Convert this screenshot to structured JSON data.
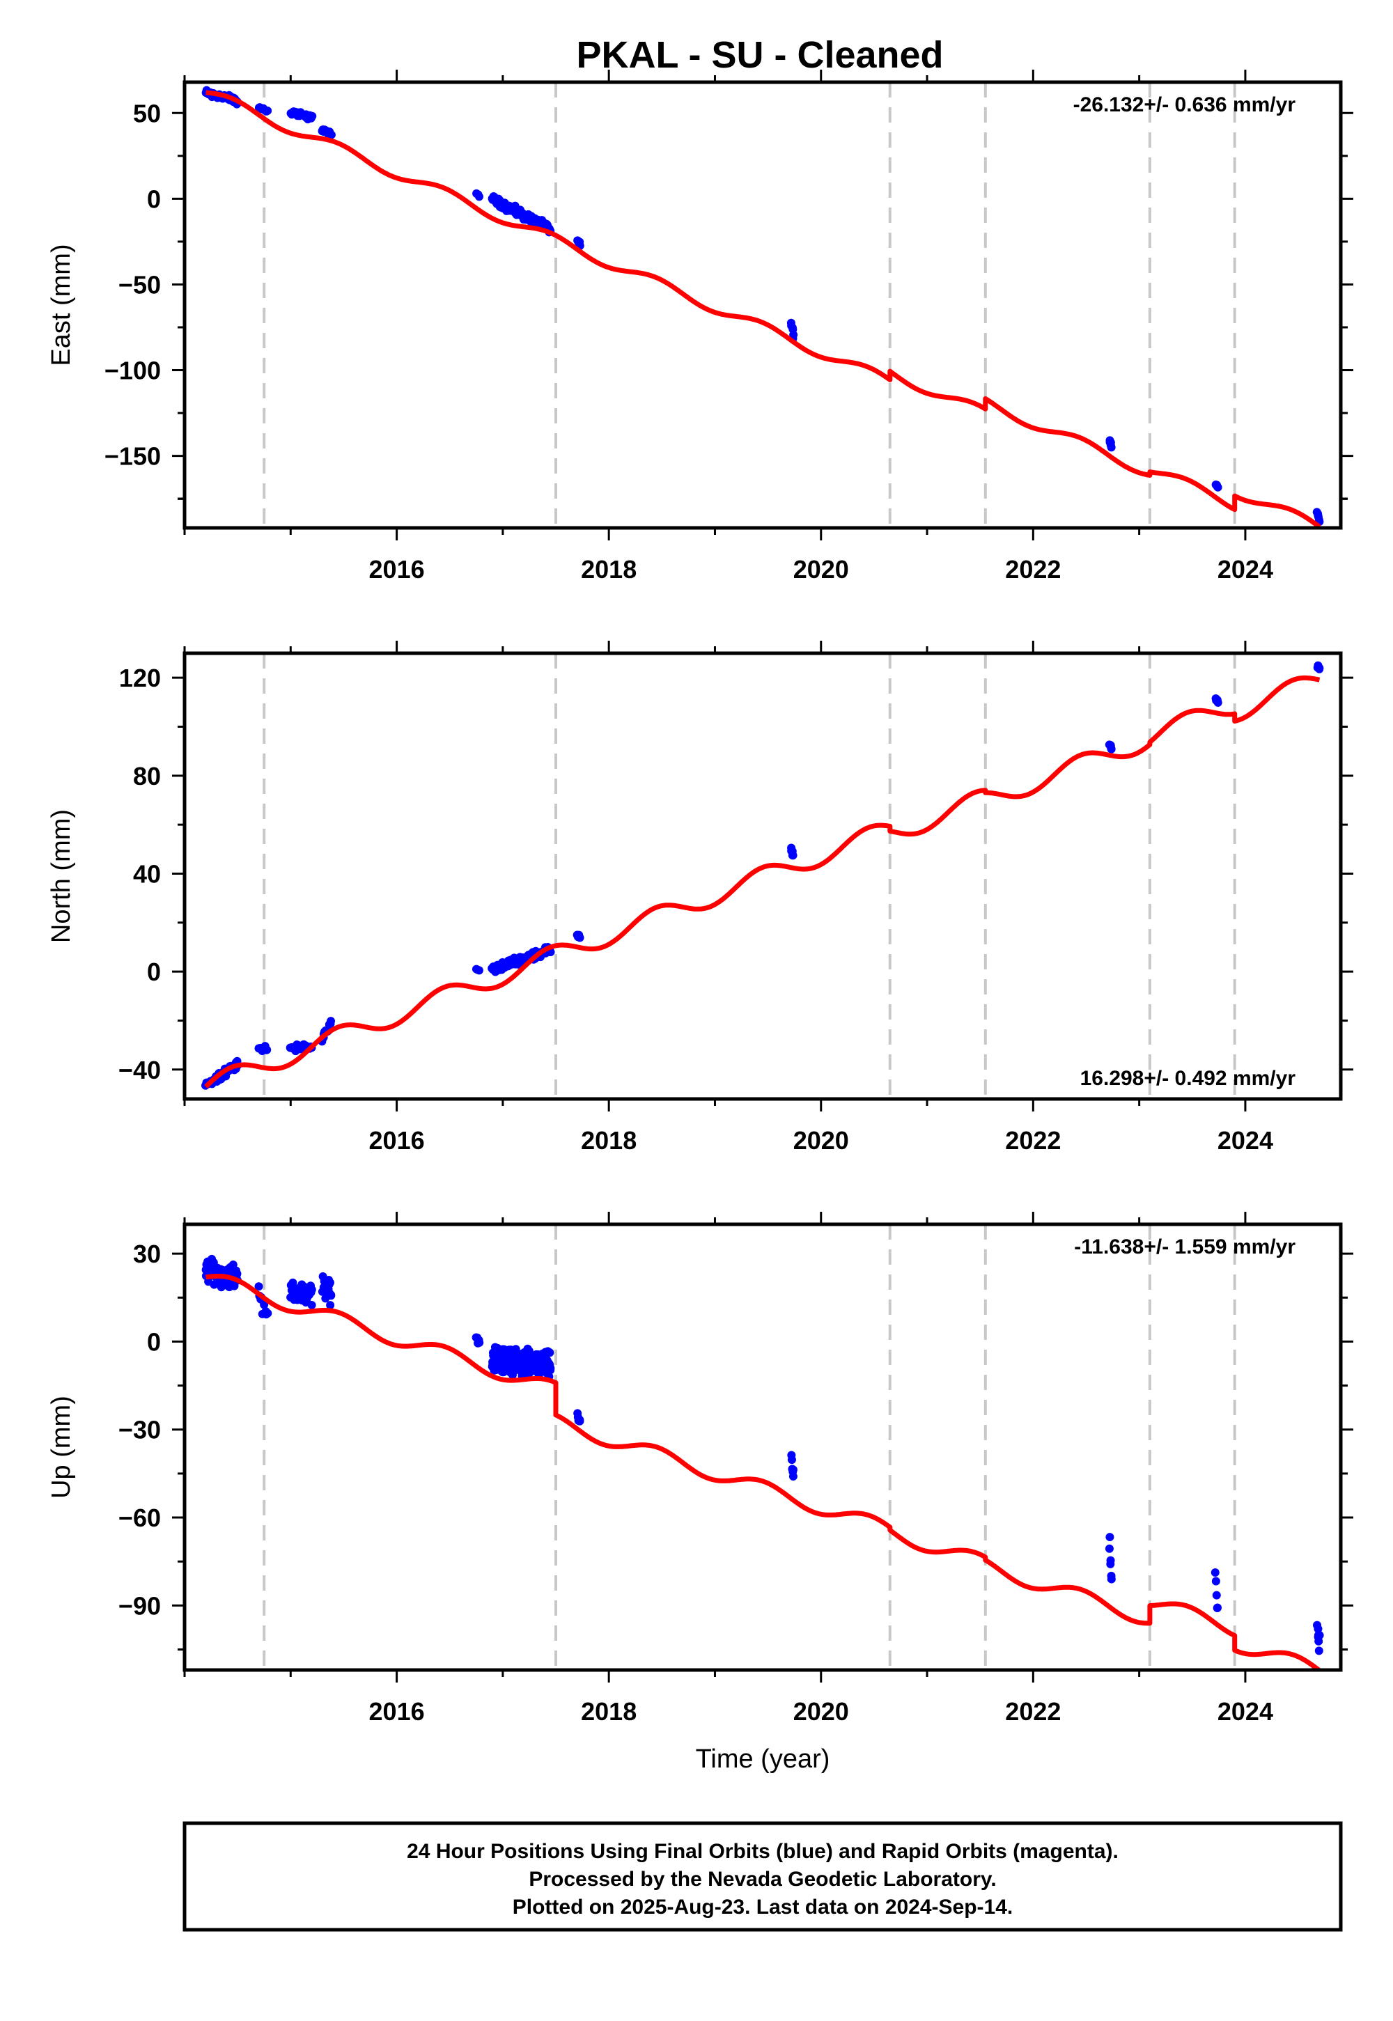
{
  "title": "PKAL  - SU - Cleaned",
  "footer": {
    "lines": [
      "24 Hour Positions Using Final Orbits (blue) and Rapid Orbits (magenta).",
      "Processed by the Nevada Geodetic Laboratory.",
      "Plotted on 2025-Aug-23. Last data on 2024-Sep-14."
    ]
  },
  "colors": {
    "data_points": "#0000ff",
    "model_line": "#ff0000",
    "offset_lines": "#c8c8c8",
    "frame": "#000000"
  },
  "chart_data": [
    {
      "type": "scatter",
      "component": "east",
      "ylabel": "East (mm)",
      "xlabel": "",
      "rate_text": "-26.132+/- 0.636 mm/yr",
      "xlim": [
        2014.0,
        2024.9
      ],
      "ylim": [
        -192,
        68
      ],
      "xticks": [
        2016,
        2018,
        2020,
        2022,
        2024
      ],
      "yticks": [
        -150,
        -100,
        -50,
        0,
        50
      ],
      "offset_epochs": [
        2014.75,
        2017.5,
        2020.65,
        2021.55,
        2023.1,
        2023.9
      ],
      "clusters": [
        {
          "x0": 2014.2,
          "x1": 2014.5,
          "y0": 62,
          "y1": 57,
          "n": 55,
          "spread": 2.5
        },
        {
          "x0": 2014.7,
          "x1": 2014.78,
          "y0": 53,
          "y1": 51,
          "n": 8,
          "spread": 1.5
        },
        {
          "x0": 2015.0,
          "x1": 2015.2,
          "y0": 51,
          "y1": 47,
          "n": 24,
          "spread": 2
        },
        {
          "x0": 2015.3,
          "x1": 2015.38,
          "y0": 41,
          "y1": 37,
          "n": 14,
          "spread": 2
        },
        {
          "x0": 2016.75,
          "x1": 2016.78,
          "y0": 3,
          "y1": 2,
          "n": 3,
          "spread": 1
        },
        {
          "x0": 2016.9,
          "x1": 2017.45,
          "y0": 0,
          "y1": -18,
          "n": 110,
          "spread": 3
        },
        {
          "x0": 2017.7,
          "x1": 2017.73,
          "y0": -24,
          "y1": -27,
          "n": 4,
          "spread": 1.5
        },
        {
          "x0": 2019.72,
          "x1": 2019.74,
          "y0": -73,
          "y1": -80,
          "n": 6,
          "spread": 2
        },
        {
          "x0": 2022.72,
          "x1": 2022.74,
          "y0": -141,
          "y1": -145,
          "n": 5,
          "spread": 1.5
        },
        {
          "x0": 2023.72,
          "x1": 2023.74,
          "y0": -167,
          "y1": -169,
          "n": 4,
          "spread": 1
        },
        {
          "x0": 2024.68,
          "x1": 2024.7,
          "y0": -182,
          "y1": -188,
          "n": 6,
          "spread": 1.5
        }
      ],
      "model": {
        "start_x": 2014.2,
        "start_y": 62,
        "rate": -26.132,
        "amp": 3.0,
        "end_x": 2024.7,
        "jumps": [
          {
            "x": 2020.65,
            "dy": 5
          },
          {
            "x": 2021.55,
            "dy": 6
          },
          {
            "x": 2023.1,
            "dy": 2
          },
          {
            "x": 2023.9,
            "dy": 8
          }
        ]
      }
    },
    {
      "type": "scatter",
      "component": "north",
      "ylabel": "North (mm)",
      "xlabel": "",
      "rate_text": "16.298+/- 0.492 mm/yr",
      "xlim": [
        2014.0,
        2024.9
      ],
      "ylim": [
        -52,
        130
      ],
      "xticks": [
        2016,
        2018,
        2020,
        2022,
        2024
      ],
      "yticks": [
        -40,
        0,
        40,
        80,
        120
      ],
      "offset_epochs": [
        2014.75,
        2017.5,
        2020.65,
        2021.55,
        2023.1,
        2023.9
      ],
      "clusters": [
        {
          "x0": 2014.2,
          "x1": 2014.5,
          "y0": -46,
          "y1": -38,
          "n": 45,
          "spread": 2
        },
        {
          "x0": 2014.7,
          "x1": 2014.78,
          "y0": -32,
          "y1": -31,
          "n": 8,
          "spread": 1.5
        },
        {
          "x0": 2015.0,
          "x1": 2015.2,
          "y0": -31,
          "y1": -31,
          "n": 24,
          "spread": 1.5
        },
        {
          "x0": 2015.3,
          "x1": 2015.38,
          "y0": -27,
          "y1": -21,
          "n": 14,
          "spread": 2
        },
        {
          "x0": 2016.75,
          "x1": 2016.78,
          "y0": 1,
          "y1": 0,
          "n": 3,
          "spread": 1
        },
        {
          "x0": 2016.9,
          "x1": 2017.45,
          "y0": 1,
          "y1": 9,
          "n": 110,
          "spread": 2
        },
        {
          "x0": 2017.7,
          "x1": 2017.73,
          "y0": 15,
          "y1": 14,
          "n": 4,
          "spread": 1
        },
        {
          "x0": 2019.72,
          "x1": 2019.74,
          "y0": 50,
          "y1": 47,
          "n": 6,
          "spread": 1.5
        },
        {
          "x0": 2022.72,
          "x1": 2022.74,
          "y0": 93,
          "y1": 91,
          "n": 5,
          "spread": 1
        },
        {
          "x0": 2023.72,
          "x1": 2023.74,
          "y0": 111,
          "y1": 110,
          "n": 4,
          "spread": 1
        },
        {
          "x0": 2024.68,
          "x1": 2024.7,
          "y0": 125,
          "y1": 123,
          "n": 6,
          "spread": 1
        }
      ],
      "model": {
        "start_x": 2014.2,
        "start_y": -47,
        "rate": 16.298,
        "amp": 4.0,
        "end_x": 2024.7,
        "jumps": [
          {
            "x": 2020.65,
            "dy": -2
          },
          {
            "x": 2021.55,
            "dy": -1
          },
          {
            "x": 2023.1,
            "dy": 1
          },
          {
            "x": 2023.9,
            "dy": -3
          }
        ]
      }
    },
    {
      "type": "scatter",
      "component": "up",
      "ylabel": "Up (mm)",
      "xlabel": "Time (year)",
      "rate_text": "-11.638+/- 1.559 mm/yr",
      "xlim": [
        2014.0,
        2024.9
      ],
      "ylim": [
        -112,
        40
      ],
      "xticks": [
        2016,
        2018,
        2020,
        2022,
        2024
      ],
      "yticks": [
        -90,
        -60,
        -30,
        0,
        30
      ],
      "offset_epochs": [
        2014.75,
        2017.5,
        2020.65,
        2021.55,
        2023.1,
        2023.9
      ],
      "clusters": [
        {
          "x0": 2014.2,
          "x1": 2014.5,
          "y0": 24,
          "y1": 22,
          "n": 80,
          "spread": 5
        },
        {
          "x0": 2014.7,
          "x1": 2014.78,
          "y0": 15,
          "y1": 12,
          "n": 10,
          "spread": 5
        },
        {
          "x0": 2015.0,
          "x1": 2015.2,
          "y0": 17,
          "y1": 16,
          "n": 45,
          "spread": 4
        },
        {
          "x0": 2015.3,
          "x1": 2015.38,
          "y0": 18,
          "y1": 17,
          "n": 24,
          "spread": 5
        },
        {
          "x0": 2016.75,
          "x1": 2016.78,
          "y0": 2,
          "y1": 0,
          "n": 5,
          "spread": 2
        },
        {
          "x0": 2016.9,
          "x1": 2017.45,
          "y0": -6,
          "y1": -8,
          "n": 240,
          "spread": 5
        },
        {
          "x0": 2017.7,
          "x1": 2017.73,
          "y0": -25,
          "y1": -28,
          "n": 5,
          "spread": 2
        },
        {
          "x0": 2019.72,
          "x1": 2019.74,
          "y0": -40,
          "y1": -46,
          "n": 7,
          "spread": 3
        },
        {
          "x0": 2022.72,
          "x1": 2022.74,
          "y0": -69,
          "y1": -81,
          "n": 6,
          "spread": 3
        },
        {
          "x0": 2023.72,
          "x1": 2023.74,
          "y0": -79,
          "y1": -92,
          "n": 5,
          "spread": 3
        },
        {
          "x0": 2024.68,
          "x1": 2024.7,
          "y0": -97,
          "y1": -105,
          "n": 7,
          "spread": 4
        }
      ],
      "model": {
        "start_x": 2014.2,
        "start_y": 22,
        "rate": -11.638,
        "amp": 2.5,
        "end_x": 2024.7,
        "jumps": [
          {
            "x": 2017.5,
            "dy": -11
          },
          {
            "x": 2020.65,
            "dy": -1
          },
          {
            "x": 2021.55,
            "dy": -1
          },
          {
            "x": 2023.1,
            "dy": 6
          },
          {
            "x": 2023.9,
            "dy": -5
          }
        ]
      }
    }
  ]
}
